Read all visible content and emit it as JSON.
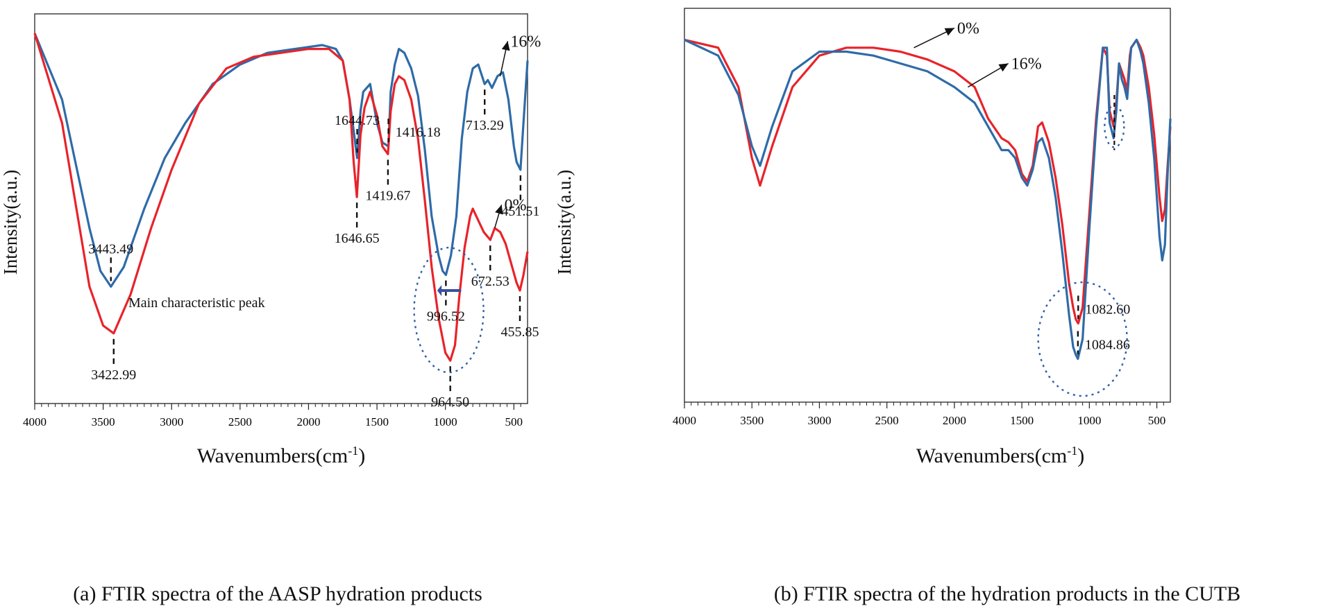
{
  "chart_data": [
    {
      "type": "line",
      "title": "",
      "caption": "(a) FTIR spectra of the AASP hydration products",
      "xlabel_main": "Wavenumbers(cm",
      "xlabel_sup": "-1",
      "xlabel_close": ")",
      "ylabel": "Intensity(a.u.)",
      "x_ticks": [
        "4000",
        "3500",
        "3000",
        "2500",
        "2000",
        "1500",
        "1000",
        "500"
      ],
      "series": [
        {
          "name": "16%",
          "color": "#2e6ba8",
          "x": [
            4000,
            3800,
            3600,
            3520,
            3443.49,
            3350,
            3200,
            3050,
            2900,
            2700,
            2500,
            2300,
            2100,
            1900,
            1800,
            1750,
            1700,
            1670,
            1644.73,
            1620,
            1600,
            1550,
            1500,
            1460,
            1416.18,
            1400,
            1370,
            1340,
            1300,
            1250,
            1200,
            1150,
            1100,
            1050,
            1020,
            996.52,
            960,
            920,
            880,
            840,
            800,
            760,
            713.29,
            690,
            660,
            620,
            580,
            540,
            500,
            480,
            451.51,
            430,
            400
          ],
          "y": [
            95,
            78,
            45,
            34,
            30,
            35,
            50,
            63,
            72,
            82,
            87,
            90,
            91,
            92,
            91,
            88,
            78,
            70,
            63,
            75,
            80,
            82,
            72,
            67,
            66,
            80,
            87,
            91,
            90,
            86,
            79,
            65,
            48,
            38,
            34,
            33,
            38,
            48,
            68,
            80,
            86,
            87,
            82,
            83,
            81,
            84,
            85,
            78,
            66,
            62,
            60,
            72,
            88
          ]
        },
        {
          "name": "0%",
          "color": "#e8232a",
          "x": [
            4000,
            3800,
            3600,
            3500,
            3422.99,
            3300,
            3150,
            3000,
            2800,
            2600,
            2400,
            2200,
            2000,
            1850,
            1750,
            1700,
            1670,
            1646.65,
            1620,
            1590,
            1550,
            1500,
            1460,
            1419.67,
            1400,
            1370,
            1340,
            1300,
            1250,
            1200,
            1150,
            1100,
            1050,
            1000,
            964.5,
            930,
            900,
            860,
            820,
            800,
            760,
            720,
            672.53,
            640,
            600,
            560,
            520,
            480,
            455.85,
            430,
            400
          ],
          "y": [
            95,
            72,
            30,
            20,
            18,
            28,
            45,
            60,
            77,
            86,
            89,
            90,
            91,
            91,
            88,
            78,
            62,
            53,
            69,
            76,
            80,
            74,
            66,
            64,
            75,
            82,
            84,
            83,
            78,
            68,
            52,
            35,
            22,
            13,
            11,
            15,
            27,
            40,
            48,
            50,
            47,
            44,
            42,
            45,
            44,
            41,
            36,
            31,
            29,
            33,
            39
          ]
        }
      ],
      "annotations": [
        {
          "text": "3443.49",
          "x": 3443.49,
          "y": 30,
          "label_pos": "above"
        },
        {
          "text": "3422.99",
          "x": 3422.99,
          "y": 18,
          "label_pos": "below"
        },
        {
          "text": "1644.73",
          "x": 1644.73,
          "y": 63,
          "label_pos": "above"
        },
        {
          "text": "1646.65",
          "x": 1646.65,
          "y": 53,
          "label_pos": "below"
        },
        {
          "text": "1416.18",
          "x": 1416.18,
          "y": 66,
          "label_pos": "right"
        },
        {
          "text": "1419.67",
          "x": 1419.67,
          "y": 64,
          "label_pos": "below"
        },
        {
          "text": "996.52",
          "x": 996.52,
          "y": 33,
          "label_pos": "below"
        },
        {
          "text": "964.50",
          "x": 964.5,
          "y": 11,
          "label_pos": "below"
        },
        {
          "text": "713.29",
          "x": 713.29,
          "y": 82,
          "label_pos": "below"
        },
        {
          "text": "672.53",
          "x": 672.53,
          "y": 42,
          "label_pos": "below"
        },
        {
          "text": "451.51",
          "x": 451.51,
          "y": 60,
          "label_pos": "below"
        },
        {
          "text": "455.85",
          "x": 455.85,
          "y": 29,
          "label_pos": "below"
        }
      ],
      "note_text": "Main characteristic peak",
      "xlim": [
        4000,
        400
      ],
      "ylim": [
        0,
        100
      ]
    },
    {
      "type": "line",
      "title": "",
      "caption": "(b) FTIR spectra of the hydration products in the CUTB",
      "xlabel_main": "Wavenumbers(cm",
      "xlabel_sup": "-1",
      "xlabel_close": ")",
      "ylabel": "Intensity(a.u.)",
      "x_ticks": [
        "4000",
        "3500",
        "3000",
        "2500",
        "2000",
        "1500",
        "1000",
        "500"
      ],
      "series": [
        {
          "name": "0%",
          "color": "#e8232a",
          "x": [
            4000,
            3750,
            3600,
            3500,
            3440,
            3350,
            3200,
            3000,
            2800,
            2600,
            2400,
            2200,
            2000,
            1850,
            1750,
            1650,
            1600,
            1550,
            1500,
            1460,
            1420,
            1380,
            1350,
            1300,
            1250,
            1200,
            1150,
            1120,
            1100,
            1082.6,
            1050,
            1000,
            950,
            900,
            870,
            850,
            820,
            800,
            780,
            760,
            740,
            720,
            700,
            690,
            670,
            650,
            620,
            600,
            560,
            520,
            480,
            460,
            440,
            420,
            400
          ],
          "y": [
            92,
            90,
            80,
            62,
            55,
            65,
            80,
            88,
            90,
            90,
            89,
            87,
            84,
            80,
            72,
            67,
            66,
            64,
            58,
            56,
            60,
            70,
            71,
            66,
            57,
            45,
            30,
            24,
            21,
            20,
            24,
            48,
            72,
            90,
            88,
            74,
            70,
            76,
            86,
            84,
            82,
            79,
            88,
            90,
            91,
            92,
            90,
            88,
            80,
            68,
            52,
            46,
            49,
            60,
            70
          ]
        },
        {
          "name": "16%",
          "color": "#2e6ba8",
          "x": [
            4000,
            3750,
            3600,
            3500,
            3440,
            3350,
            3200,
            3000,
            2800,
            2600,
            2400,
            2200,
            2000,
            1850,
            1750,
            1650,
            1600,
            1550,
            1500,
            1460,
            1420,
            1380,
            1350,
            1300,
            1250,
            1200,
            1150,
            1120,
            1100,
            1084.86,
            1050,
            1000,
            950,
            900,
            870,
            850,
            820,
            800,
            780,
            760,
            740,
            720,
            700,
            690,
            670,
            650,
            620,
            600,
            560,
            520,
            480,
            460,
            440,
            420,
            400
          ],
          "y": [
            92,
            88,
            78,
            65,
            60,
            70,
            84,
            89,
            89,
            88,
            86,
            84,
            80,
            76,
            70,
            64,
            64,
            62,
            57,
            55,
            59,
            66,
            67,
            62,
            52,
            38,
            22,
            14,
            12,
            11,
            16,
            44,
            70,
            90,
            90,
            71,
            67,
            74,
            86,
            82,
            80,
            77,
            86,
            90,
            91,
            92,
            89,
            86,
            76,
            62,
            42,
            36,
            40,
            58,
            72
          ]
        }
      ],
      "annotations": [
        {
          "text": "1082.60",
          "x": 1082.6,
          "y": 20,
          "label_pos": "right"
        },
        {
          "text": "1084.86",
          "x": 1084.86,
          "y": 11,
          "label_pos": "right"
        }
      ],
      "xlim": [
        4000,
        400
      ],
      "ylim": [
        0,
        100
      ]
    }
  ]
}
